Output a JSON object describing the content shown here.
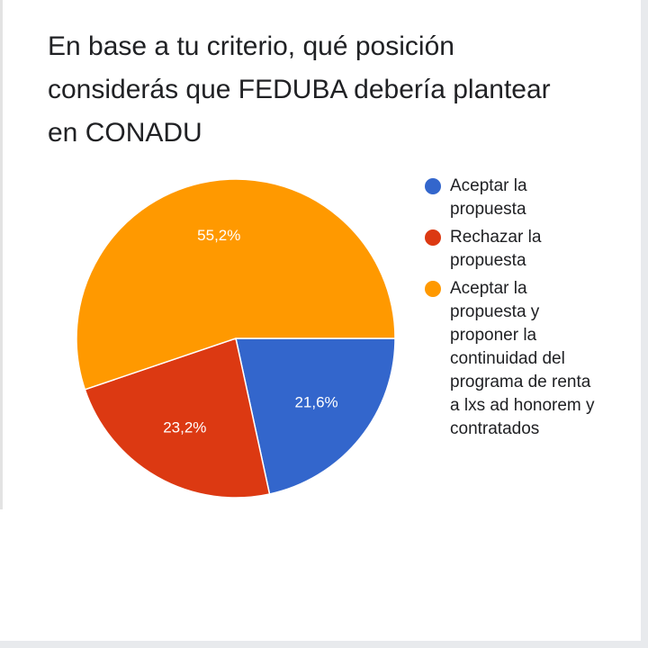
{
  "question": {
    "title": "En base a tu criterio, qué posición considerás que FEDUBA debería plantear en CONADU"
  },
  "chart_data": {
    "type": "pie",
    "legend_position": "right",
    "slices": [
      {
        "label": "Aceptar la propuesta",
        "value": 21.6,
        "value_label": "21,6%",
        "color": "#3366cc"
      },
      {
        "label": "Rechazar la propuesta",
        "value": 23.2,
        "value_label": "23,2%",
        "color": "#dc3912"
      },
      {
        "label": "Aceptar la propuesta y proponer la continuidad del programa de renta a lxs ad honorem y contratados",
        "value": 55.2,
        "value_label": "55,2%",
        "color": "#ff9900"
      }
    ]
  }
}
